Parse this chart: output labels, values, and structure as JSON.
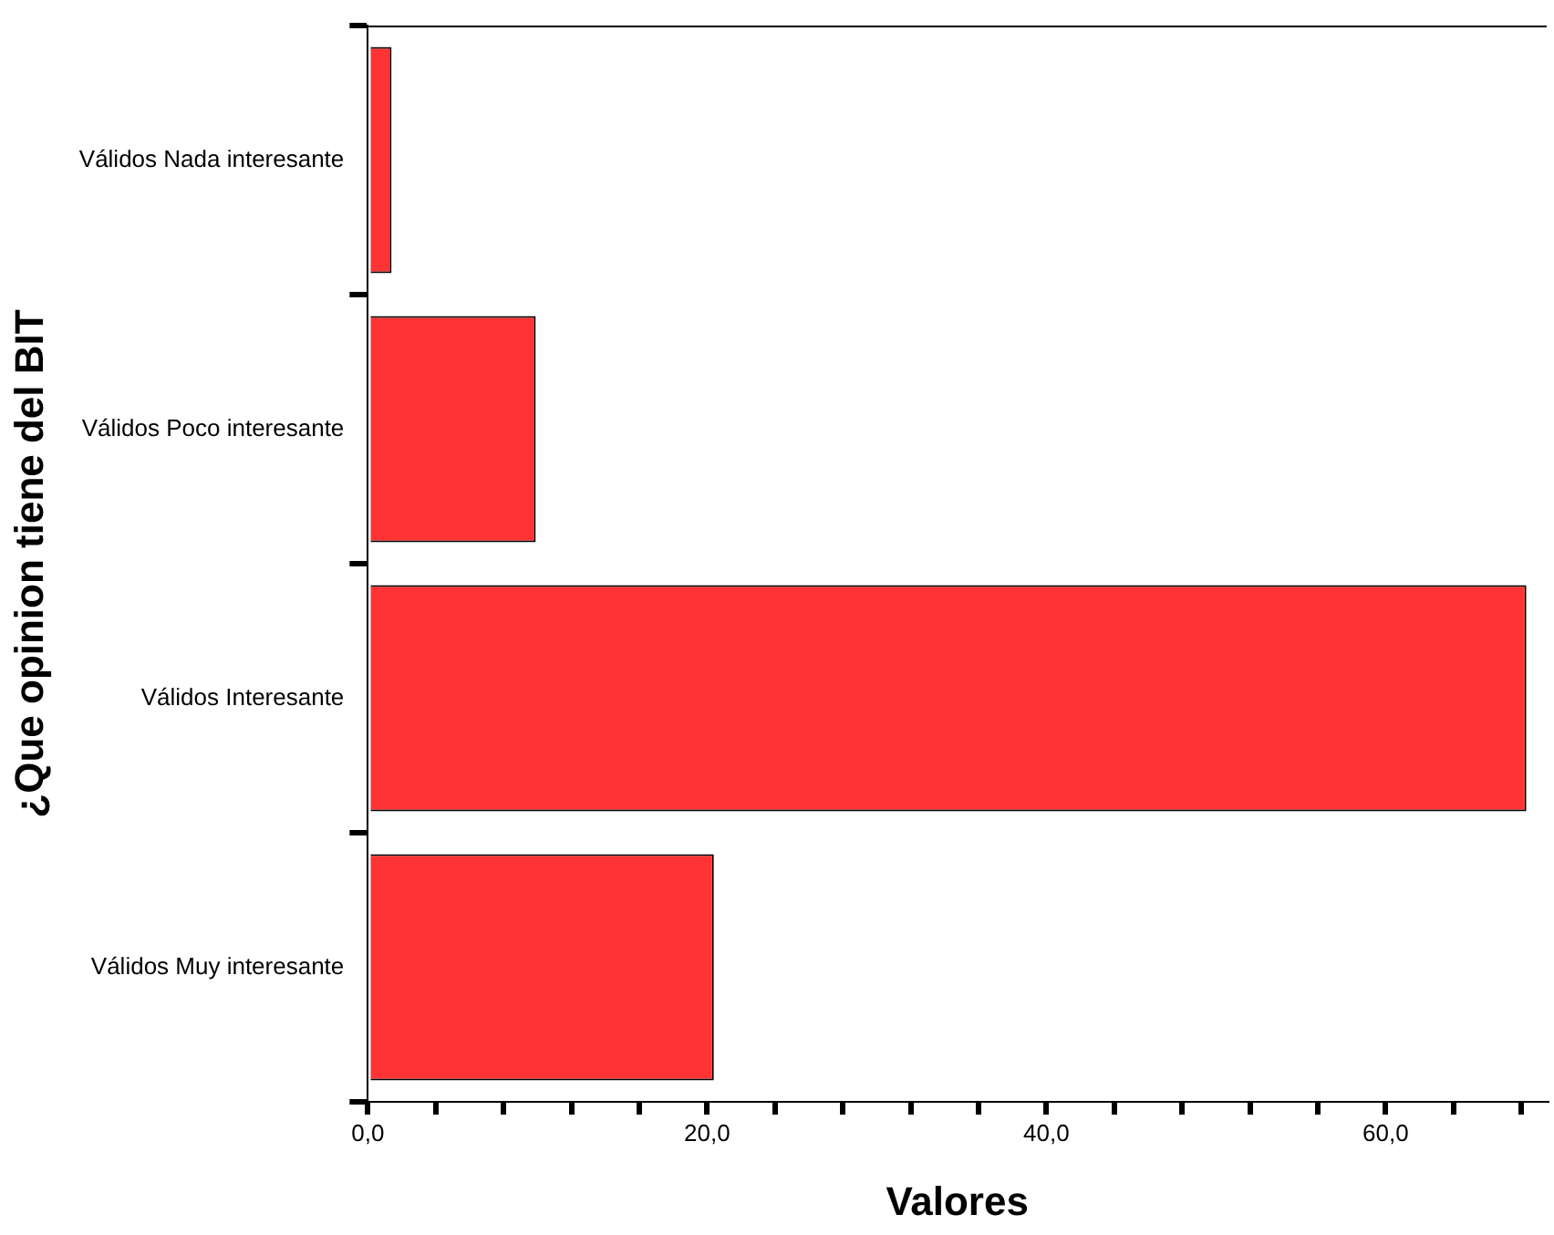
{
  "chart_data": {
    "type": "bar",
    "orientation": "horizontal",
    "xlabel": "Valores",
    "ylabel": "¿Que opinion tiene del BIT",
    "categories": [
      "Válidos Nada interesante",
      "Válidos Poco interesante",
      "Válidos Interesante",
      "Válidos Muy interesante"
    ],
    "values": [
      1.4,
      9.9,
      68.3,
      20.4
    ],
    "color": "#ff3333",
    "xlim": [
      0,
      69.5
    ],
    "xticks": [
      {
        "value": 0,
        "label": "0,0"
      },
      {
        "value": 4,
        "label": null
      },
      {
        "value": 8,
        "label": null
      },
      {
        "value": 12,
        "label": null
      },
      {
        "value": 16,
        "label": null
      },
      {
        "value": 20,
        "label": "20,0"
      },
      {
        "value": 24,
        "label": null
      },
      {
        "value": 28,
        "label": null
      },
      {
        "value": 32,
        "label": null
      },
      {
        "value": 36,
        "label": null
      },
      {
        "value": 40,
        "label": "40,0"
      },
      {
        "value": 44,
        "label": null
      },
      {
        "value": 48,
        "label": null
      },
      {
        "value": 52,
        "label": null
      },
      {
        "value": 56,
        "label": null
      },
      {
        "value": 60,
        "label": "60,0"
      },
      {
        "value": 64,
        "label": null
      },
      {
        "value": 68,
        "label": null
      }
    ],
    "grid": false,
    "legend": false
  }
}
